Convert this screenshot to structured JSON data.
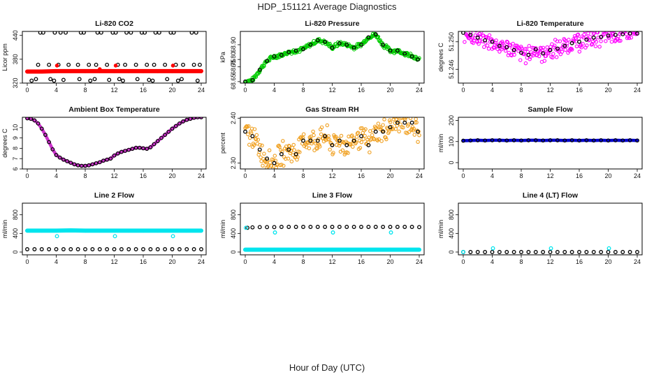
{
  "figure": {
    "title": "HDP_151121  Average Diagnostics",
    "xlabel": "Hour of Day (UTC)"
  },
  "chart_data": [
    {
      "type": "scatter",
      "title": "Li-820 CO2",
      "xlabel": "",
      "ylabel": "Licor ppm",
      "xlim": [
        0,
        24
      ],
      "xticks": [
        "0",
        "4",
        "8",
        "12",
        "16",
        "20",
        "24"
      ],
      "ylim": [
        320,
        450
      ],
      "yticks": [
        "320",
        "380",
        "440"
      ],
      "series": [
        {
          "name": "co2-outlier-high",
          "color": "#000000",
          "hollow": true,
          "x": [
            1.8,
            2.2,
            3.8,
            4.6,
            5.3,
            7.4,
            7.8,
            9.7,
            10.2,
            11.8,
            12.2,
            13.7,
            14.3,
            15.8,
            16.2,
            17.7,
            18.2,
            19.8,
            20.2,
            22.7,
            23.3
          ],
          "y": [
            447,
            447,
            447,
            447,
            447,
            447,
            447,
            447,
            447,
            447,
            447,
            447,
            447,
            447,
            447,
            447,
            447,
            447,
            447,
            447,
            447
          ]
        },
        {
          "name": "co2-outlier-mid",
          "color": "#000000",
          "hollow": true,
          "x": [
            1.5,
            3.0,
            4.3,
            5.7,
            7.0,
            8.5,
            9.5,
            11.0,
            12.5,
            13.5,
            15.0,
            16.5,
            17.5,
            19.0,
            20.5,
            21.5,
            23.0,
            23.8
          ],
          "y": [
            366,
            366,
            366,
            366,
            366,
            366,
            366,
            366,
            366,
            366,
            366,
            366,
            366,
            366,
            366,
            366,
            366,
            366
          ]
        },
        {
          "name": "co2-outlier-low",
          "color": "#000000",
          "hollow": true,
          "x": [
            0.6,
            1.2,
            3.2,
            3.7,
            5.0,
            7.2,
            8.7,
            9.3,
            11.3,
            12.7,
            13.2,
            15.2,
            16.8,
            17.3,
            19.3,
            20.8,
            21.3,
            23.5
          ],
          "y": [
            326,
            330,
            330,
            326,
            328,
            330,
            326,
            330,
            328,
            330,
            326,
            330,
            328,
            326,
            330,
            326,
            330,
            326
          ]
        },
        {
          "name": "co2-main",
          "color": "#ff0000",
          "hollow": false,
          "line": true,
          "x": [
            0,
            2,
            4,
            6,
            8,
            10,
            12,
            14,
            16,
            18,
            20,
            22,
            24
          ],
          "y": [
            349,
            349,
            350,
            350,
            350,
            350,
            350,
            350,
            350,
            350,
            350,
            350,
            350
          ]
        },
        {
          "name": "co2-red-bumps",
          "color": "#ff0000",
          "hollow": false,
          "x": [
            4.1,
            12.2,
            20.1,
            10
          ],
          "y": [
            364,
            364,
            364,
            355
          ]
        }
      ]
    },
    {
      "type": "scatter",
      "title": "Li-820 Pressure",
      "xlabel": "",
      "ylabel": "kPa",
      "xlim": [
        0,
        24
      ],
      "xticks": [
        "0",
        "4",
        "8",
        "12",
        "16",
        "20",
        "24"
      ],
      "ylim": [
        68.64,
        68.99
      ],
      "yticks": [
        "68.65",
        "68.75",
        "68.80",
        "68.90"
      ],
      "ytick_values": [
        68.65,
        68.75,
        68.8,
        68.9
      ],
      "series": [
        {
          "name": "pressure",
          "color": "#000000",
          "band": "#00cc00",
          "bandwidth": 0.018,
          "x": [
            0,
            1,
            2,
            3,
            4,
            5,
            6,
            7,
            8,
            9,
            10,
            11,
            12,
            13,
            14,
            15,
            16,
            17,
            18,
            19,
            20,
            21,
            22,
            23,
            23.8
          ],
          "y": [
            68.65,
            68.66,
            68.73,
            68.79,
            68.82,
            68.83,
            68.85,
            68.86,
            68.87,
            68.9,
            68.93,
            68.92,
            68.88,
            68.91,
            68.9,
            68.88,
            68.9,
            68.95,
            68.97,
            68.9,
            68.86,
            68.86,
            68.84,
            68.82,
            68.8
          ]
        }
      ]
    },
    {
      "type": "scatter",
      "title": "Li-820 Temperature",
      "xlabel": "",
      "ylabel": "degrees C",
      "xlim": [
        0,
        24
      ],
      "xticks": [
        "0",
        "4",
        "8",
        "12",
        "16",
        "20",
        "24"
      ],
      "ylim": [
        51.244,
        51.2515
      ],
      "yticks": [
        "51.246",
        "51.250"
      ],
      "ytick_values": [
        51.246,
        51.25
      ],
      "series": [
        {
          "name": "temperature",
          "color": "#000000",
          "band": "#ff00ff",
          "bandwidth": 0.0016,
          "x": [
            0,
            1,
            2,
            3,
            4,
            5,
            6,
            7,
            8,
            9,
            10,
            11,
            12,
            13,
            14,
            15,
            16,
            17,
            18,
            19,
            20,
            21,
            22,
            23,
            24
          ],
          "y": [
            51.2513,
            51.251,
            51.2506,
            51.2502,
            51.25,
            51.2494,
            51.2492,
            51.2488,
            51.2484,
            51.2481,
            51.2489,
            51.2483,
            51.2488,
            51.249,
            51.2494,
            51.2498,
            51.25,
            51.2503,
            51.2506,
            51.2507,
            51.2509,
            51.251,
            51.2511,
            51.2512,
            51.2512
          ]
        }
      ]
    },
    {
      "type": "scatter",
      "title": "Ambient Box Temperature",
      "xlabel": "",
      "ylabel": "degrees C",
      "xlim": [
        0,
        24
      ],
      "xticks": [
        "0",
        "4",
        "8",
        "12",
        "16",
        "20",
        "24"
      ],
      "ylim": [
        6,
        11
      ],
      "yticks": [
        "6",
        "7",
        "8",
        "9",
        "10"
      ],
      "series": [
        {
          "name": "box-temp",
          "color": "#000000",
          "fill": "#cc33cc",
          "line": true,
          "x": [
            0,
            0.5,
            1,
            1.5,
            2,
            2.5,
            3,
            3.5,
            4,
            4.5,
            5,
            5.5,
            6,
            6.5,
            7,
            7.5,
            8,
            8.5,
            9,
            9.5,
            10,
            10.5,
            11,
            11.5,
            12,
            12.5,
            13,
            13.5,
            14,
            14.5,
            15,
            15.5,
            16,
            16.5,
            17,
            17.5,
            18,
            18.5,
            19,
            19.5,
            20,
            20.5,
            21,
            21.5,
            22,
            22.5,
            23,
            23.5,
            24
          ],
          "y": [
            10.9,
            10.85,
            10.7,
            10.4,
            9.9,
            9.3,
            8.6,
            7.9,
            7.35,
            7.1,
            6.9,
            6.75,
            6.6,
            6.45,
            6.35,
            6.3,
            6.3,
            6.35,
            6.45,
            6.55,
            6.65,
            6.8,
            6.9,
            7.0,
            7.3,
            7.5,
            7.65,
            7.75,
            7.85,
            7.95,
            8.05,
            8.05,
            8.0,
            7.95,
            8.1,
            8.4,
            8.7,
            9.0,
            9.3,
            9.6,
            9.9,
            10.15,
            10.4,
            10.6,
            10.75,
            10.85,
            10.95,
            11.0,
            11.0
          ]
        }
      ]
    },
    {
      "type": "scatter",
      "title": "Gas Stream RH",
      "xlabel": "",
      "ylabel": "percent",
      "xlim": [
        0,
        24
      ],
      "xticks": [
        "0",
        "4",
        "8",
        "12",
        "16",
        "20",
        "24"
      ],
      "ylim": [
        2.287,
        2.402
      ],
      "yticks": [
        "2.30",
        "2.40"
      ],
      "ytick_values": [
        2.3,
        2.4
      ],
      "series": [
        {
          "name": "rh",
          "color": "#000000",
          "band": "#f0a020",
          "bandwidth": 0.032,
          "x": [
            0,
            1,
            2,
            3,
            4,
            5,
            6,
            7,
            8,
            9,
            10,
            11,
            12,
            13,
            14,
            15,
            16,
            17,
            18,
            19,
            20,
            21,
            22,
            23,
            23.8
          ],
          "y": [
            2.37,
            2.36,
            2.33,
            2.31,
            2.3,
            2.32,
            2.33,
            2.32,
            2.35,
            2.35,
            2.35,
            2.36,
            2.34,
            2.35,
            2.34,
            2.35,
            2.36,
            2.34,
            2.37,
            2.37,
            2.38,
            2.39,
            2.39,
            2.39,
            2.37
          ]
        }
      ]
    },
    {
      "type": "scatter",
      "title": "Sample Flow",
      "xlabel": "",
      "ylabel": "ml/min",
      "xlim": [
        0,
        24
      ],
      "xticks": [
        "0",
        "4",
        "8",
        "12",
        "16",
        "20",
        "24"
      ],
      "ylim": [
        -30,
        215
      ],
      "yticks": [
        "0",
        "100",
        "200"
      ],
      "series": [
        {
          "name": "sample-flow",
          "color": "#000000",
          "fill": "#0000cc",
          "line": true,
          "x": [
            0,
            1,
            2,
            3,
            4,
            5,
            6,
            7,
            8,
            9,
            10,
            11,
            12,
            13,
            14,
            15,
            16,
            17,
            18,
            19,
            20,
            21,
            22,
            23,
            24
          ],
          "y": [
            104,
            105,
            106,
            105,
            106,
            106,
            105,
            106,
            105,
            106,
            106,
            105,
            106,
            106,
            105,
            106,
            105,
            106,
            105,
            106,
            105,
            106,
            105,
            106,
            105
          ]
        }
      ]
    },
    {
      "type": "scatter",
      "title": "Line 2 Flow",
      "xlabel": "",
      "ylabel": "ml/min",
      "xlim": [
        0,
        24
      ],
      "xticks": [
        "0",
        "4",
        "8",
        "12",
        "16",
        "20",
        "24"
      ],
      "ylim": [
        -60,
        1050
      ],
      "yticks": [
        "0",
        "400",
        "800"
      ],
      "series": [
        {
          "name": "line2-cyan",
          "color": "#00e5ee",
          "hollow": false,
          "line": true,
          "x": [
            0,
            2,
            4,
            6,
            8,
            10,
            12,
            14,
            16,
            18,
            20,
            22,
            24
          ],
          "y": [
            460,
            460,
            460,
            465,
            460,
            460,
            460,
            460,
            460,
            460,
            460,
            460,
            460
          ]
        },
        {
          "name": "line2-cyan-dips",
          "color": "#00e5ee",
          "hollow": true,
          "x": [
            4.1,
            12.1,
            20.1
          ],
          "y": [
            340,
            340,
            340
          ]
        },
        {
          "name": "line2-black",
          "color": "#000000",
          "hollow": true,
          "x": [
            0,
            1,
            2,
            3,
            4,
            5,
            6,
            7,
            8,
            9,
            10,
            11,
            12,
            13,
            14,
            15,
            16,
            17,
            18,
            19,
            20,
            21,
            22,
            23,
            24
          ],
          "y": [
            60,
            60,
            60,
            60,
            60,
            60,
            60,
            60,
            60,
            60,
            60,
            60,
            60,
            60,
            60,
            60,
            60,
            60,
            60,
            60,
            60,
            60,
            60,
            60,
            60
          ]
        }
      ]
    },
    {
      "type": "scatter",
      "title": "Line 3 Flow",
      "xlabel": "",
      "ylabel": "ml/min",
      "xlim": [
        0,
        24
      ],
      "xticks": [
        "0",
        "4",
        "8",
        "12",
        "16",
        "20",
        "24"
      ],
      "ylim": [
        -60,
        1050
      ],
      "yticks": [
        "0",
        "400",
        "800"
      ],
      "series": [
        {
          "name": "line3-black",
          "color": "#000000",
          "hollow": true,
          "x": [
            0.3,
            1,
            2,
            3,
            4,
            5,
            6,
            7,
            8,
            9,
            10,
            11,
            12,
            13,
            14,
            15,
            16,
            17,
            18,
            19,
            20,
            21,
            22,
            23,
            24
          ],
          "y": [
            520,
            530,
            535,
            535,
            535,
            540,
            540,
            540,
            540,
            540,
            540,
            540,
            540,
            540,
            540,
            540,
            540,
            540,
            540,
            540,
            540,
            540,
            540,
            540,
            535
          ]
        },
        {
          "name": "line3-cyan",
          "color": "#00e5ee",
          "hollow": false,
          "line": true,
          "x": [
            0,
            2,
            4,
            6,
            8,
            10,
            12,
            14,
            16,
            18,
            20,
            22,
            24
          ],
          "y": [
            50,
            50,
            50,
            50,
            50,
            50,
            50,
            50,
            50,
            50,
            50,
            50,
            50
          ]
        },
        {
          "name": "line3-cyan-dips",
          "color": "#00e5ee",
          "hollow": true,
          "x": [
            0.1,
            4.1,
            12.1,
            20.1
          ],
          "y": [
            520,
            420,
            420,
            420
          ]
        }
      ]
    },
    {
      "type": "scatter",
      "title": "Line 4 (LT) Flow",
      "xlabel": "",
      "ylabel": "ml/min",
      "xlim": [
        0,
        24
      ],
      "xticks": [
        "0",
        "4",
        "8",
        "12",
        "16",
        "20",
        "24"
      ],
      "ylim": [
        -60,
        1050
      ],
      "yticks": [
        "0",
        "400",
        "800"
      ],
      "series": [
        {
          "name": "line4-black",
          "color": "#000000",
          "hollow": true,
          "x": [
            0,
            1,
            2,
            3,
            4,
            5,
            6,
            7,
            8,
            9,
            10,
            11,
            12,
            13,
            14,
            15,
            16,
            17,
            18,
            19,
            20,
            21,
            22,
            23,
            24
          ],
          "y": [
            0,
            0,
            0,
            0,
            0,
            0,
            0,
            0,
            0,
            0,
            0,
            0,
            0,
            0,
            0,
            0,
            0,
            0,
            0,
            0,
            0,
            0,
            0,
            0,
            0
          ]
        },
        {
          "name": "line4-cyan",
          "color": "#00e5ee",
          "hollow": true,
          "x": [
            0,
            4.1,
            12.1,
            20.1
          ],
          "y": [
            0,
            80,
            80,
            80
          ]
        }
      ]
    }
  ]
}
